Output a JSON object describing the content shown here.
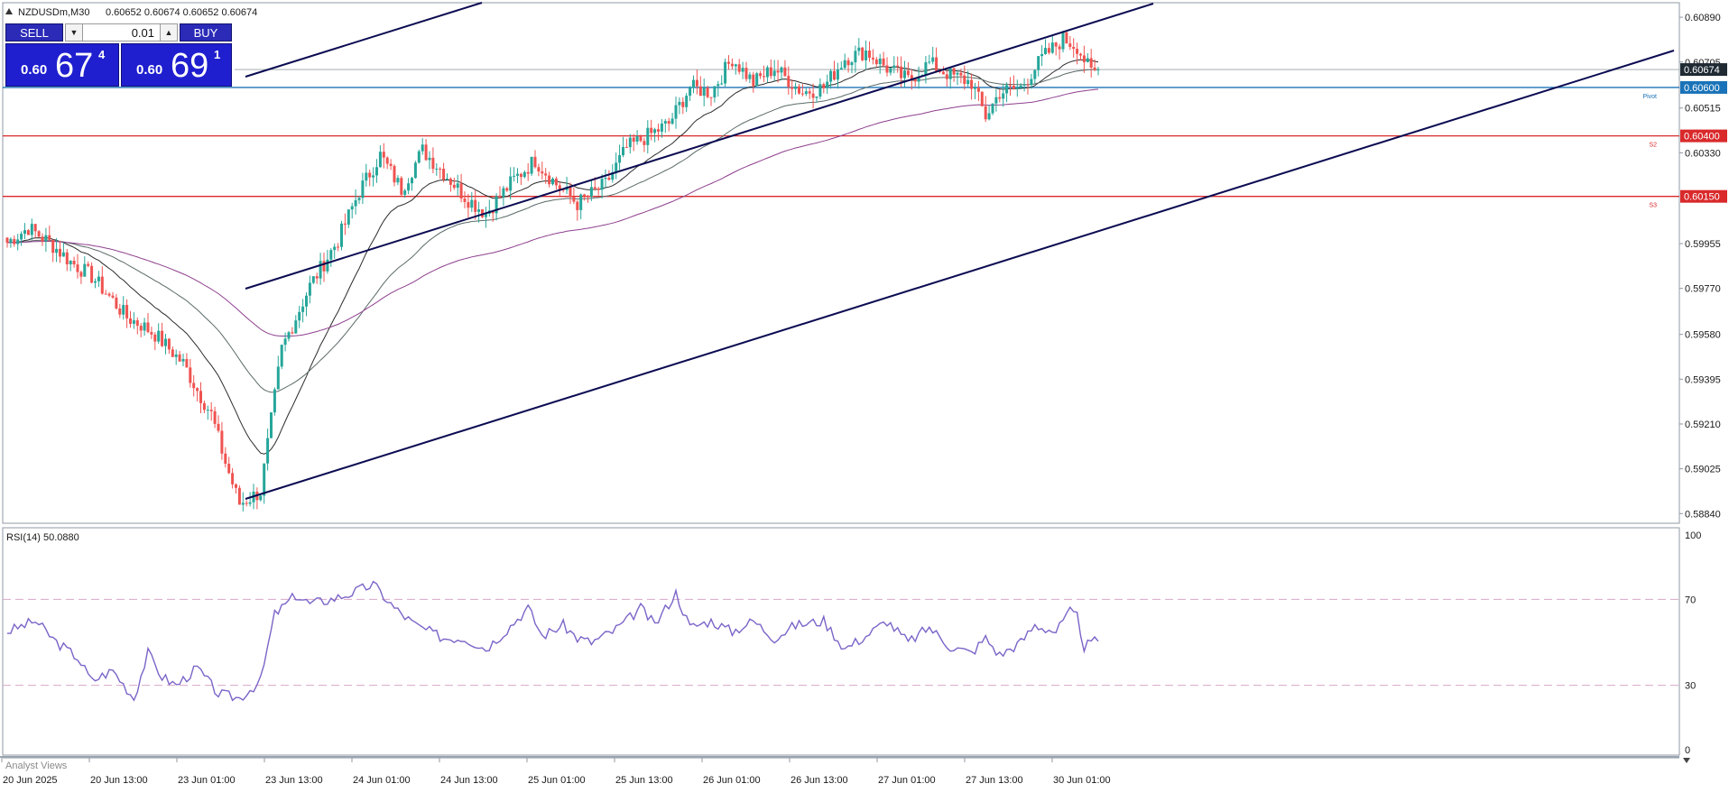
{
  "header": {
    "symbol_info": "NZDUSDm,M30",
    "ohlc": "0.60652 0.60674 0.60652 0.60674"
  },
  "trade_panel": {
    "sell_label": "SELL",
    "buy_label": "BUY",
    "volume": "0.01",
    "bid_prefix": "0.60",
    "bid_big": "67",
    "bid_sup": "4",
    "ask_prefix": "0.60",
    "ask_big": "69",
    "ask_sup": "1"
  },
  "rsi_panel": {
    "label": "RSI(14) 50.0880",
    "scale_labels": [
      "100",
      "70",
      "30",
      "0"
    ]
  },
  "bottom": {
    "analyst_tab": "Analyst Views"
  },
  "colors": {
    "bull": "#26a69a",
    "bear": "#ef5350",
    "pivot_line": "#1a73b8",
    "support_line": "#d9292b",
    "trendline": "#0b0b52",
    "ma_purple": "#8e3f8e",
    "ma_dark": "#2b2b2b",
    "ma_gray": "#5a6a68",
    "rsi_line": "#7b64c8",
    "current_price_tag": "#1f2a33"
  },
  "chart_data": [
    {
      "type": "candlestick",
      "symbol": "NZDUSDm",
      "timeframe": "M30",
      "ylim": [
        0.588,
        0.6095
      ],
      "y_ticks": [
        "0.60890",
        "0.60705",
        "0.60515",
        "0.60330",
        "0.59955",
        "0.59770",
        "0.59580",
        "0.59395",
        "0.59210",
        "0.59025",
        "0.58840"
      ],
      "x_ticks": [
        "20 Jun 2025",
        "20 Jun 13:00",
        "23 Jun 01:00",
        "23 Jun 13:00",
        "24 Jun 01:00",
        "24 Jun 13:00",
        "25 Jun 01:00",
        "25 Jun 13:00",
        "26 Jun 01:00",
        "26 Jun 13:00",
        "27 Jun 01:00",
        "27 Jun 13:00",
        "30 Jun 01:00"
      ],
      "current_price": "0.60674",
      "horizontal_levels": [
        {
          "price": 0.606,
          "label": "0.60600",
          "name": "Pivot",
          "color": "#1a73b8"
        },
        {
          "price": 0.604,
          "label": "0.60400",
          "name": "S2",
          "color": "#d9292b"
        },
        {
          "price": 0.6015,
          "label": "0.60150",
          "name": "S3",
          "color": "#d9292b"
        }
      ],
      "close_anchors": [
        [
          0,
          0.5996
        ],
        [
          6,
          0.6002
        ],
        [
          12,
          0.5996
        ],
        [
          18,
          0.5988
        ],
        [
          24,
          0.5982
        ],
        [
          30,
          0.5972
        ],
        [
          34,
          0.5965
        ],
        [
          38,
          0.5962
        ],
        [
          42,
          0.5958
        ],
        [
          46,
          0.5952
        ],
        [
          50,
          0.5946
        ],
        [
          54,
          0.5935
        ],
        [
          58,
          0.5925
        ],
        [
          62,
          0.5905
        ],
        [
          66,
          0.5888
        ],
        [
          72,
          0.5893
        ],
        [
          78,
          0.5952
        ],
        [
          86,
          0.5978
        ],
        [
          94,
          0.5997
        ],
        [
          100,
          0.6017
        ],
        [
          106,
          0.6032
        ],
        [
          112,
          0.6018
        ],
        [
          118,
          0.6034
        ],
        [
          124,
          0.6025
        ],
        [
          130,
          0.6015
        ],
        [
          136,
          0.6008
        ],
        [
          144,
          0.6022
        ],
        [
          150,
          0.603
        ],
        [
          156,
          0.602
        ],
        [
          162,
          0.6012
        ],
        [
          170,
          0.602
        ],
        [
          176,
          0.6035
        ],
        [
          182,
          0.604
        ],
        [
          188,
          0.6045
        ],
        [
          194,
          0.606
        ],
        [
          200,
          0.6058
        ],
        [
          206,
          0.6072
        ],
        [
          212,
          0.6062
        ],
        [
          218,
          0.6068
        ],
        [
          226,
          0.6058
        ],
        [
          232,
          0.606
        ],
        [
          238,
          0.6072
        ],
        [
          244,
          0.6075
        ],
        [
          250,
          0.6068
        ],
        [
          256,
          0.6063
        ],
        [
          262,
          0.607
        ],
        [
          268,
          0.6065
        ],
        [
          274,
          0.6062
        ],
        [
          278,
          0.6048
        ],
        [
          282,
          0.6058
        ],
        [
          288,
          0.606
        ],
        [
          294,
          0.6072
        ],
        [
          300,
          0.608
        ],
        [
          304,
          0.6077
        ],
        [
          308,
          0.6066
        ],
        [
          310,
          0.6067
        ]
      ],
      "trendlines": [
        {
          "name": "upper-outer",
          "points": [
            [
              -3,
              0.6073
            ],
            [
              70,
              0.6104
            ]
          ]
        },
        {
          "name": "channel-upper",
          "points": [
            [
              -3,
              0.5976
            ],
            [
              1035,
              0.6104
            ]
          ]
        },
        {
          "name": "channel-lower",
          "points": [
            [
              66,
              0.5888
            ],
            [
              460,
              0.6082
            ]
          ]
        }
      ]
    },
    {
      "type": "line",
      "title": "RSI(14) 50.0880",
      "ylim": [
        0,
        100
      ],
      "levels": [
        70,
        30
      ],
      "anchors": [
        [
          0,
          55
        ],
        [
          8,
          60
        ],
        [
          14,
          50
        ],
        [
          20,
          43
        ],
        [
          24,
          32
        ],
        [
          30,
          37
        ],
        [
          36,
          24
        ],
        [
          40,
          45
        ],
        [
          44,
          34
        ],
        [
          48,
          30
        ],
        [
          54,
          38
        ],
        [
          60,
          26
        ],
        [
          66,
          24
        ],
        [
          72,
          32
        ],
        [
          76,
          63
        ],
        [
          82,
          72
        ],
        [
          86,
          68
        ],
        [
          92,
          70
        ],
        [
          98,
          73
        ],
        [
          104,
          77
        ],
        [
          110,
          66
        ],
        [
          116,
          58
        ],
        [
          124,
          52
        ],
        [
          130,
          52
        ],
        [
          136,
          47
        ],
        [
          142,
          56
        ],
        [
          148,
          66
        ],
        [
          152,
          53
        ],
        [
          158,
          58
        ],
        [
          162,
          52
        ],
        [
          166,
          50
        ],
        [
          172,
          55
        ],
        [
          176,
          60
        ],
        [
          180,
          66
        ],
        [
          184,
          58
        ],
        [
          190,
          73
        ],
        [
          194,
          57
        ],
        [
          200,
          60
        ],
        [
          206,
          55
        ],
        [
          212,
          60
        ],
        [
          218,
          52
        ],
        [
          224,
          58
        ],
        [
          232,
          60
        ],
        [
          238,
          47
        ],
        [
          244,
          53
        ],
        [
          250,
          60
        ],
        [
          256,
          50
        ],
        [
          262,
          57
        ],
        [
          268,
          48
        ],
        [
          274,
          45
        ],
        [
          278,
          52
        ],
        [
          282,
          44
        ],
        [
          288,
          50
        ],
        [
          292,
          58
        ],
        [
          298,
          55
        ],
        [
          302,
          64
        ],
        [
          304,
          62
        ],
        [
          306,
          48
        ],
        [
          310,
          51
        ]
      ]
    }
  ]
}
